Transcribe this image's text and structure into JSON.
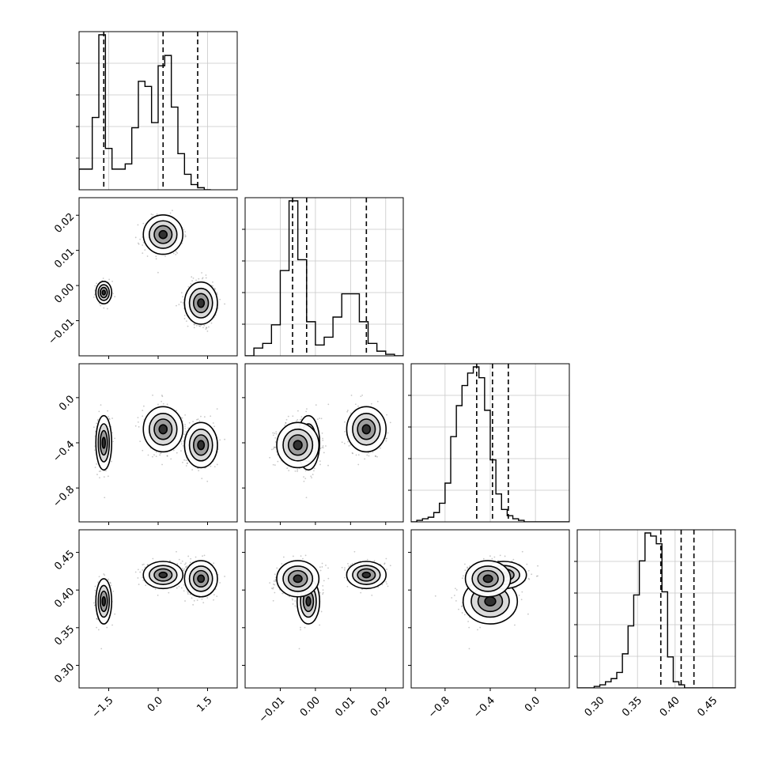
{
  "chart_data": {
    "type": "corner",
    "n_params": 4,
    "grid": true,
    "params": [
      {
        "range": [
          -2.4,
          2.4
        ],
        "ticks": [
          -1.5,
          0.0,
          1.5
        ],
        "tick_labels": [
          "−1.5",
          "0.0",
          "1.5"
        ],
        "quantiles": [
          -1.65,
          0.15,
          1.2
        ],
        "hist_start": -2.4,
        "hist_step": 0.2,
        "hist": [
          0.2,
          0.2,
          0.7,
          1.5,
          0.4,
          0.2,
          0.2,
          0.25,
          0.6,
          1.05,
          1.0,
          0.65,
          1.2,
          1.3,
          0.8,
          0.35,
          0.15,
          0.05,
          0.02,
          0.0
        ]
      },
      {
        "range": [
          -0.02,
          0.025
        ],
        "ticks": [
          -0.01,
          0.0,
          0.01,
          0.02
        ],
        "tick_labels": [
          "−0.01",
          "0.00",
          "0.01",
          "0.02"
        ],
        "quantiles": [
          -0.0065,
          -0.0025,
          0.0145
        ],
        "hist_start": -0.02,
        "hist_step": 0.0025,
        "hist": [
          0.0,
          0.05,
          0.08,
          0.2,
          0.55,
          1.0,
          0.62,
          0.22,
          0.07,
          0.12,
          0.25,
          0.4,
          0.4,
          0.22,
          0.08,
          0.03,
          0.01,
          0.0
        ]
      },
      {
        "range": [
          -1.1,
          0.3
        ],
        "ticks": [
          -0.8,
          -0.4,
          0.0
        ],
        "tick_labels": [
          "−0.8",
          "−0.4",
          "0.0"
        ],
        "quantiles": [
          -0.52,
          -0.38,
          -0.24
        ],
        "hist_start": -1.1,
        "hist_step": 0.05,
        "hist": [
          0.0,
          0.01,
          0.02,
          0.03,
          0.06,
          0.12,
          0.25,
          0.55,
          0.75,
          0.88,
          0.96,
          1.0,
          0.93,
          0.72,
          0.4,
          0.18,
          0.08,
          0.04,
          0.02,
          0.01,
          0.0,
          0.0,
          0.0,
          0.0,
          0.0,
          0.0,
          0.0,
          0.0
        ]
      },
      {
        "range": [
          0.27,
          0.48
        ],
        "ticks": [
          0.3,
          0.35,
          0.4,
          0.45
        ],
        "tick_labels": [
          "0.30",
          "0.35",
          "0.40",
          "0.45"
        ],
        "quantiles": [
          0.381,
          0.408,
          0.425
        ],
        "hist_start": 0.27,
        "hist_step": 0.0075,
        "hist": [
          0.0,
          0.0,
          0.0,
          0.01,
          0.02,
          0.04,
          0.06,
          0.1,
          0.22,
          0.4,
          0.6,
          0.82,
          1.0,
          0.98,
          0.93,
          0.62,
          0.2,
          0.04,
          0.02,
          0.0,
          0.0,
          0.0,
          0.0,
          0.0,
          0.0,
          0.0,
          0.0,
          0.0
        ]
      }
    ],
    "clusters": [
      {
        "mean": [
          -1.65,
          -0.002,
          -0.4,
          0.385
        ],
        "sd": [
          0.12,
          0.0016,
          0.12,
          0.015
        ],
        "weight": 0.3
      },
      {
        "mean": [
          0.15,
          0.0145,
          -0.28,
          0.42
        ],
        "sd": [
          0.3,
          0.0028,
          0.1,
          0.009
        ],
        "weight": 0.3
      },
      {
        "mean": [
          1.3,
          -0.005,
          -0.42,
          0.415
        ],
        "sd": [
          0.25,
          0.003,
          0.1,
          0.012
        ],
        "weight": 0.4
      }
    ]
  }
}
